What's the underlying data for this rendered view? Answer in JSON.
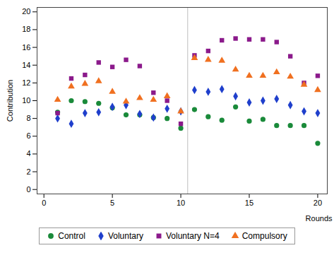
{
  "chart_data": {
    "type": "scatter",
    "x_label": "Rounds",
    "y_label": "Contribution",
    "x": [
      1,
      2,
      3,
      4,
      5,
      6,
      7,
      8,
      9,
      10,
      11,
      12,
      13,
      14,
      15,
      16,
      17,
      18,
      19,
      20
    ],
    "series": [
      {
        "name": "Control",
        "color": "#1a8a3a",
        "marker": "circle",
        "values": [
          8.7,
          10.0,
          9.9,
          9.7,
          9.2,
          8.4,
          8.4,
          8.1,
          8.0,
          6.9,
          9.0,
          8.2,
          7.8,
          9.3,
          7.7,
          7.9,
          7.2,
          7.2,
          7.2,
          5.2
        ]
      },
      {
        "name": "Voluntary",
        "color": "#1f3fcc",
        "marker": "diamond",
        "values": [
          8.0,
          7.4,
          8.6,
          8.7,
          9.3,
          9.5,
          8.5,
          8.1,
          9.1,
          8.8,
          11.2,
          11.0,
          11.3,
          10.5,
          9.8,
          10.0,
          10.2,
          9.5,
          8.8,
          8.6
        ]
      },
      {
        "name": "Voluntary N=4",
        "color": "#8b1a8b",
        "marker": "square",
        "values": [
          8.6,
          12.5,
          12.9,
          14.3,
          13.8,
          14.6,
          13.9,
          10.9,
          10.0,
          7.4,
          15.1,
          15.6,
          16.8,
          17.0,
          16.9,
          16.9,
          16.6,
          15.0,
          12.0,
          12.8
        ]
      },
      {
        "name": "Compulsory",
        "color": "#f07020",
        "marker": "triangle",
        "values": [
          10.1,
          11.6,
          11.9,
          12.2,
          11.0,
          9.9,
          10.3,
          10.1,
          10.5,
          8.8,
          14.8,
          14.6,
          14.5,
          13.5,
          12.8,
          12.8,
          13.2,
          12.7,
          11.8,
          11.2
        ]
      }
    ],
    "reference_line_x": 10.5,
    "xlim": [
      -0.5,
      20.7
    ],
    "xticks": [
      0,
      5,
      10,
      15,
      20
    ],
    "ylim": [
      -0.5,
      20.5
    ],
    "yticks": [
      0,
      2,
      4,
      6,
      8,
      10,
      12,
      14,
      16,
      18,
      20
    ],
    "grid": false,
    "legend": "bottom"
  }
}
